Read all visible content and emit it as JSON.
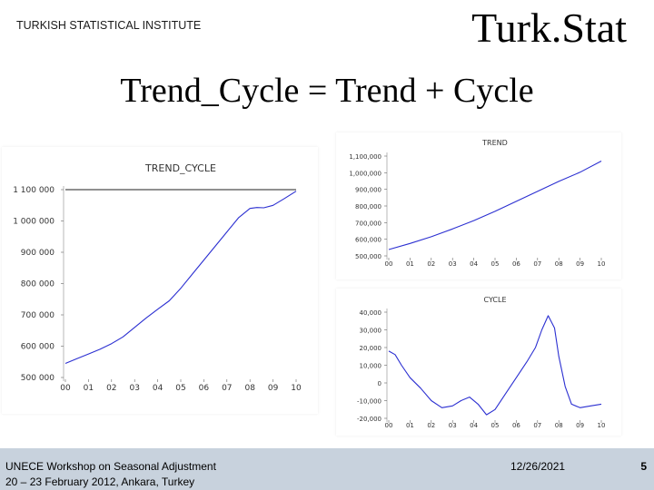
{
  "header": {
    "institute": "TURKISH STATISTICAL INSTITUTE",
    "logo_text": "Turk.Stat"
  },
  "slide": {
    "title": "Trend_Cycle = Trend + Cycle"
  },
  "footer": {
    "line1": "UNECE Workshop on Seasonal Adjustment",
    "line2": "20 – 23 February 2012, Ankara, Turkey",
    "date": "12/26/2021",
    "page": "5"
  },
  "colors": {
    "series": "#2b2fd1",
    "footer_band": "#c8d2dd"
  },
  "chart_data": [
    {
      "id": "trend_cycle",
      "type": "line",
      "title": "TREND_CYCLE",
      "xlabel": "",
      "ylabel": "",
      "x_ticks": [
        "00",
        "01",
        "02",
        "03",
        "04",
        "05",
        "06",
        "07",
        "08",
        "09",
        "10"
      ],
      "y_ticks": [
        "500 000",
        "600 000",
        "700 000",
        "800 000",
        "900 000",
        "1 000 000",
        "1 100 000"
      ],
      "ylim": [
        500000,
        1100000
      ],
      "xlim": [
        0,
        10
      ],
      "reference_line": 1100000,
      "series": [
        {
          "name": "TREND_CYCLE",
          "x": [
            0,
            0.5,
            1,
            1.5,
            2,
            2.5,
            3,
            3.5,
            4,
            4.5,
            5,
            5.5,
            6,
            6.5,
            7,
            7.5,
            8,
            8.3,
            8.6,
            9,
            9.5,
            10
          ],
          "values": [
            545000,
            560000,
            575000,
            590000,
            608000,
            630000,
            660000,
            690000,
            718000,
            745000,
            785000,
            830000,
            875000,
            920000,
            965000,
            1010000,
            1040000,
            1043000,
            1042000,
            1050000,
            1072000,
            1095000
          ]
        }
      ]
    },
    {
      "id": "trend",
      "type": "line",
      "title": "TREND",
      "x_ticks": [
        "00",
        "01",
        "02",
        "03",
        "04",
        "05",
        "06",
        "07",
        "08",
        "09",
        "10"
      ],
      "y_ticks": [
        "500,000",
        "600,000",
        "700,000",
        "800,000",
        "900,000",
        "1,000,000",
        "1,100,000"
      ],
      "ylim": [
        500000,
        1100000
      ],
      "xlim": [
        0,
        10
      ],
      "series": [
        {
          "name": "TREND",
          "x": [
            0,
            1,
            2,
            3,
            4,
            5,
            6,
            7,
            8,
            9,
            10
          ],
          "values": [
            538000,
            575000,
            615000,
            662000,
            712000,
            768000,
            828000,
            888000,
            948000,
            1003000,
            1070000
          ]
        }
      ]
    },
    {
      "id": "cycle",
      "type": "line",
      "title": "CYCLE",
      "x_ticks": [
        "00",
        "01",
        "02",
        "03",
        "04",
        "05",
        "06",
        "07",
        "08",
        "09",
        "10"
      ],
      "y_ticks": [
        "-20,000",
        "-10,000",
        "0",
        "10,000",
        "20,000",
        "30,000",
        "40,000"
      ],
      "ylim": [
        -20000,
        40000
      ],
      "xlim": [
        0,
        10
      ],
      "series": [
        {
          "name": "CYCLE",
          "x": [
            0,
            0.3,
            0.6,
            1,
            1.5,
            2,
            2.5,
            3,
            3.4,
            3.8,
            4.2,
            4.6,
            5,
            5.5,
            6,
            6.5,
            6.9,
            7.2,
            7.5,
            7.8,
            8,
            8.3,
            8.6,
            9,
            9.5,
            10
          ],
          "values": [
            18000,
            16000,
            10000,
            3000,
            -3000,
            -10000,
            -14000,
            -13000,
            -10000,
            -8000,
            -12000,
            -18000,
            -15000,
            -6000,
            3000,
            12000,
            20000,
            30000,
            38000,
            31000,
            15000,
            -2000,
            -12000,
            -14000,
            -13000,
            -12000
          ]
        }
      ]
    }
  ]
}
